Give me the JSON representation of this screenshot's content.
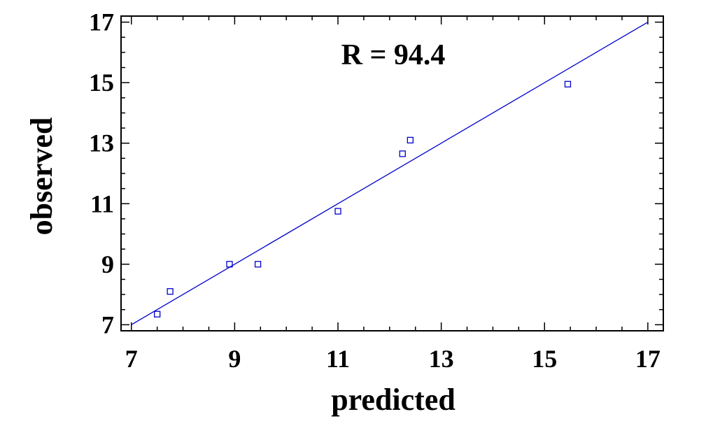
{
  "chart_data": {
    "type": "scatter",
    "title": "",
    "xlabel": "predicted",
    "ylabel": "observed",
    "annotation": "R = 94.4",
    "xlim": [
      6.8,
      17.3
    ],
    "ylim": [
      6.8,
      17.2
    ],
    "xticks": [
      7,
      9,
      11,
      13,
      15,
      17
    ],
    "yticks": [
      7,
      9,
      11,
      13,
      15,
      17
    ],
    "grid": false,
    "colors": {
      "points": "#0000cc",
      "line": "#0000cc",
      "axes": "#000000"
    },
    "fit_line": {
      "x": [
        7,
        17
      ],
      "y": [
        7,
        17
      ]
    },
    "points": [
      {
        "x": 7.5,
        "y": 7.35
      },
      {
        "x": 7.75,
        "y": 8.1
      },
      {
        "x": 8.9,
        "y": 9.0
      },
      {
        "x": 9.45,
        "y": 9.0
      },
      {
        "x": 11.0,
        "y": 10.75
      },
      {
        "x": 12.25,
        "y": 12.65
      },
      {
        "x": 12.4,
        "y": 13.1
      },
      {
        "x": 15.45,
        "y": 14.95
      }
    ]
  }
}
